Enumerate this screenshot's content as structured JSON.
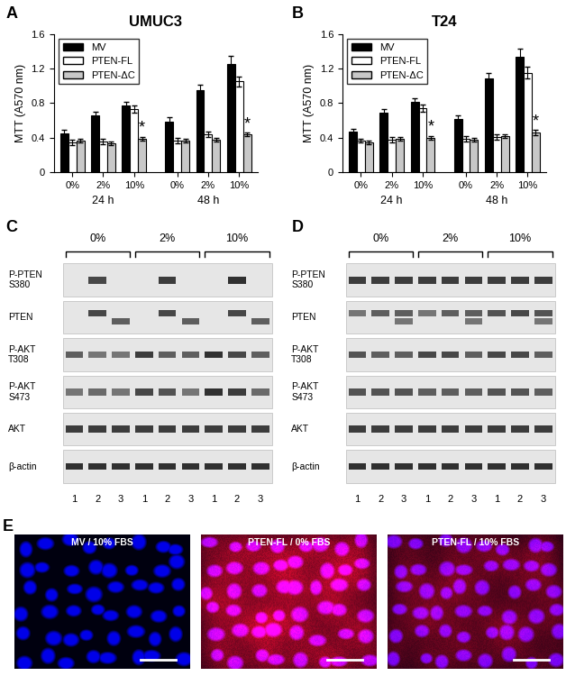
{
  "chart_data": [
    {
      "panel": "A",
      "type": "bar",
      "title": "UMUC3",
      "y_label": "MTT (A570 nm)",
      "categories": [
        "0%",
        "2%",
        "10%",
        "0%",
        "2%",
        "10%"
      ],
      "groups": [
        {
          "label": "24 h",
          "size": 3
        },
        {
          "label": "48 h",
          "size": 3
        }
      ],
      "ylim": [
        0,
        1.6
      ],
      "yticks": [
        0,
        0.4,
        0.8,
        1.2,
        1.6
      ],
      "legend": "upper left",
      "series": [
        {
          "name": "MV",
          "color": "#000000",
          "values": [
            0.45,
            0.66,
            0.77,
            0.59,
            0.95,
            1.25
          ],
          "errors": [
            0.04,
            0.04,
            0.04,
            0.05,
            0.06,
            0.09
          ]
        },
        {
          "name": "PTEN-FL",
          "color": "#ffffff",
          "values": [
            0.35,
            0.36,
            0.73,
            0.37,
            0.44,
            1.05
          ],
          "errors": [
            0.03,
            0.03,
            0.04,
            0.03,
            0.03,
            0.06
          ]
        },
        {
          "name": "PTEN-ΔC",
          "color": "#c8c8c8",
          "values": [
            0.37,
            0.34,
            0.39,
            0.37,
            0.38,
            0.44
          ],
          "errors": [
            0.02,
            0.02,
            0.02,
            0.02,
            0.02,
            0.02
          ]
        }
      ],
      "annotations": [
        {
          "text": "*",
          "series": 2,
          "index": 2
        },
        {
          "text": "*",
          "series": 2,
          "index": 5
        }
      ]
    },
    {
      "panel": "B",
      "type": "bar",
      "title": "T24",
      "y_label": "MTT (A570 nm)",
      "categories": [
        "0%",
        "2%",
        "10%",
        "0%",
        "2%",
        "10%"
      ],
      "groups": [
        {
          "label": "24 h",
          "size": 3
        },
        {
          "label": "48 h",
          "size": 3
        }
      ],
      "ylim": [
        0,
        1.6
      ],
      "yticks": [
        0,
        0.4,
        0.8,
        1.2,
        1.6
      ],
      "legend": "upper left",
      "series": [
        {
          "name": "MV",
          "color": "#000000",
          "values": [
            0.47,
            0.69,
            0.81,
            0.62,
            1.08,
            1.33
          ],
          "errors": [
            0.03,
            0.04,
            0.05,
            0.04,
            0.07,
            0.1
          ]
        },
        {
          "name": "PTEN-FL",
          "color": "#ffffff",
          "values": [
            0.37,
            0.38,
            0.74,
            0.39,
            0.41,
            1.15
          ],
          "errors": [
            0.02,
            0.03,
            0.04,
            0.03,
            0.03,
            0.07
          ]
        },
        {
          "name": "PTEN-ΔC",
          "color": "#c8c8c8",
          "values": [
            0.35,
            0.39,
            0.4,
            0.38,
            0.42,
            0.46
          ],
          "errors": [
            0.02,
            0.02,
            0.02,
            0.02,
            0.02,
            0.03
          ]
        }
      ],
      "annotations": [
        {
          "text": "*",
          "series": 2,
          "index": 2
        },
        {
          "text": "*",
          "series": 2,
          "index": 5
        }
      ]
    }
  ],
  "blots": [
    {
      "panel": "C",
      "columns": [
        "0%",
        "2%",
        "10%"
      ],
      "lanes": [
        1,
        2,
        3,
        1,
        2,
        3,
        1,
        2,
        3
      ],
      "rows": [
        {
          "label": "P-PTEN\nS380",
          "intensity": [
            0,
            0.8,
            0,
            0,
            0.85,
            0,
            0,
            0.9,
            0
          ]
        },
        {
          "label": "PTEN",
          "intensity": [
            0,
            0.8,
            0,
            0,
            0.8,
            0,
            0,
            0.8,
            0
          ],
          "lower_intensity": [
            0,
            0,
            0.7,
            0,
            0,
            0.7,
            0,
            0,
            0.7
          ]
        },
        {
          "label": "P-AKT\nT308",
          "intensity": [
            0.7,
            0.6,
            0.6,
            0.85,
            0.7,
            0.7,
            0.9,
            0.8,
            0.7
          ]
        },
        {
          "label": "P-AKT\nS473",
          "intensity": [
            0.6,
            0.65,
            0.6,
            0.8,
            0.75,
            0.6,
            0.9,
            0.85,
            0.65
          ]
        },
        {
          "label": "AKT",
          "intensity": [
            0.85,
            0.85,
            0.85,
            0.85,
            0.85,
            0.85,
            0.85,
            0.85,
            0.85
          ]
        },
        {
          "label": "β-actin",
          "intensity": [
            0.9,
            0.9,
            0.9,
            0.9,
            0.9,
            0.9,
            0.9,
            0.9,
            0.9
          ]
        }
      ]
    },
    {
      "panel": "D",
      "columns": [
        "0%",
        "2%",
        "10%"
      ],
      "lanes": [
        1,
        2,
        3,
        1,
        2,
        3,
        1,
        2,
        3
      ],
      "rows": [
        {
          "label": "P-PTEN\nS380",
          "intensity": [
            0.85,
            0.85,
            0.85,
            0.85,
            0.85,
            0.85,
            0.85,
            0.85,
            0.85
          ]
        },
        {
          "label": "PTEN",
          "intensity": [
            0.6,
            0.7,
            0.7,
            0.6,
            0.7,
            0.7,
            0.75,
            0.8,
            0.75
          ],
          "lower_intensity": [
            0,
            0,
            0.6,
            0,
            0,
            0.6,
            0,
            0,
            0.6
          ]
        },
        {
          "label": "P-AKT\nT308",
          "intensity": [
            0.75,
            0.7,
            0.7,
            0.8,
            0.8,
            0.7,
            0.8,
            0.8,
            0.7
          ]
        },
        {
          "label": "P-AKT\nS473",
          "intensity": [
            0.75,
            0.75,
            0.75,
            0.7,
            0.7,
            0.7,
            0.75,
            0.75,
            0.7
          ]
        },
        {
          "label": "AKT",
          "intensity": [
            0.85,
            0.85,
            0.85,
            0.85,
            0.85,
            0.85,
            0.85,
            0.85,
            0.85
          ]
        },
        {
          "label": "β-actin",
          "intensity": [
            0.9,
            0.9,
            0.9,
            0.9,
            0.9,
            0.9,
            0.9,
            0.9,
            0.9
          ]
        }
      ]
    }
  ],
  "images": {
    "panel": "E",
    "items": [
      {
        "title": "MV / 10% FBS",
        "stain_intensity": 0.0
      },
      {
        "title": "PTEN-FL / 0% FBS",
        "stain_intensity": 0.9
      },
      {
        "title": "PTEN-FL / 10% FBS",
        "stain_intensity": 0.55
      }
    ]
  }
}
